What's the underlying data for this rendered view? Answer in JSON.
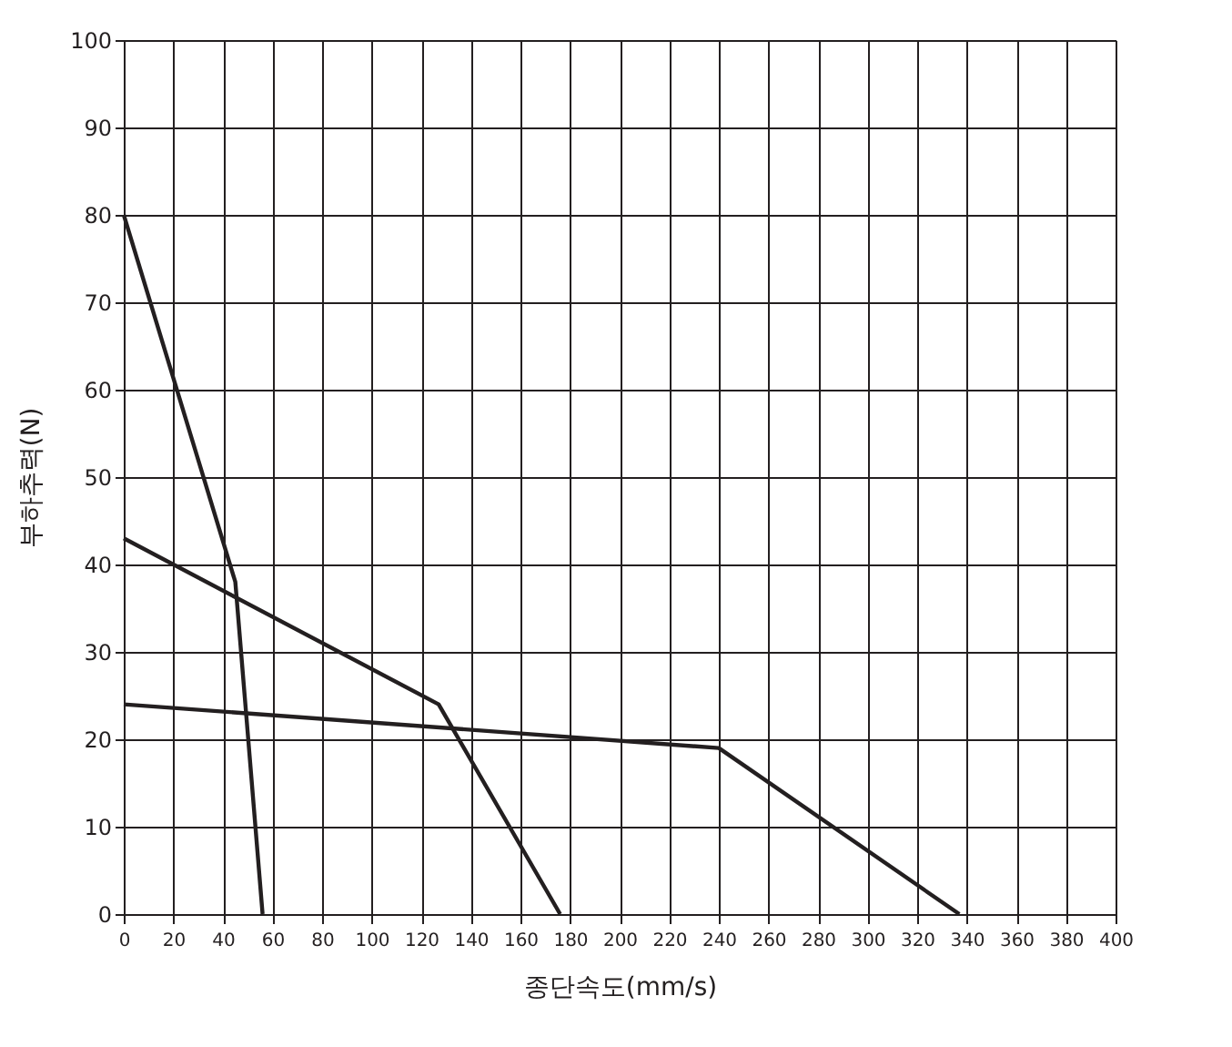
{
  "chart_data": {
    "type": "line",
    "xlabel": "종단속도(mm/s)",
    "ylabel": "부하추력(N)",
    "xlim": [
      0,
      400
    ],
    "xticks": [
      0,
      20,
      40,
      60,
      80,
      100,
      120,
      140,
      160,
      180,
      200,
      220,
      240,
      260,
      280,
      300,
      320,
      340,
      360,
      380,
      400
    ],
    "ylim": [
      0,
      100
    ],
    "yticks": [
      0,
      10,
      20,
      30,
      40,
      50,
      60,
      70,
      80,
      90,
      100
    ],
    "grid": true,
    "marker": "none",
    "line_style": "solid",
    "series": [
      {
        "color": "#231f20",
        "x": [
          0,
          45,
          56
        ],
        "values": [
          80,
          38,
          0
        ]
      },
      {
        "color": "#231f20",
        "x": [
          0,
          127,
          176
        ],
        "values": [
          43,
          24,
          0
        ]
      },
      {
        "color": "#231f20",
        "x": [
          0,
          240,
          337
        ],
        "values": [
          24,
          19,
          0
        ]
      }
    ]
  }
}
